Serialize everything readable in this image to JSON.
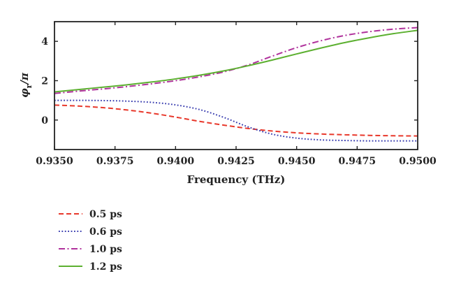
{
  "chart_data": {
    "type": "line",
    "title": "",
    "xlabel": "Frequency (THz)",
    "ylabel": "φr/π",
    "ylabel_main": "φ",
    "ylabel_sub": "r",
    "ylabel_tail": "/π",
    "xlim": [
      0.935,
      0.95
    ],
    "ylim": [
      -1.5,
      5.0
    ],
    "xticks": [
      0.935,
      0.9375,
      0.94,
      0.9425,
      0.945,
      0.9475,
      0.95
    ],
    "xtick_labels": [
      "0.9350",
      "0.9375",
      "0.9400",
      "0.9425",
      "0.9450",
      "0.9475",
      "0.9500"
    ],
    "yticks": [
      0,
      2,
      4
    ],
    "ytick_labels": [
      "0",
      "2",
      "4"
    ],
    "grid": false,
    "legend_position": "below-left",
    "x": [
      0.935,
      0.936,
      0.937,
      0.938,
      0.939,
      0.94,
      0.941,
      0.942,
      0.943,
      0.944,
      0.945,
      0.946,
      0.947,
      0.948,
      0.949,
      0.95
    ],
    "series": [
      {
        "name": "0.5 ps",
        "color": "#e8382b",
        "dash": "dashed",
        "values": [
          0.76,
          0.71,
          0.63,
          0.51,
          0.35,
          0.15,
          -0.07,
          -0.26,
          -0.43,
          -0.56,
          -0.65,
          -0.71,
          -0.75,
          -0.78,
          -0.8,
          -0.81
        ]
      },
      {
        "name": "0.6 ps",
        "color": "#3b3fb0",
        "dash": "dotted",
        "values": [
          1.0,
          1.0,
          0.99,
          0.96,
          0.9,
          0.77,
          0.53,
          0.13,
          -0.35,
          -0.72,
          -0.92,
          -1.01,
          -1.04,
          -1.06,
          -1.06,
          -1.06
        ]
      },
      {
        "name": "1.0 ps",
        "color": "#b0329c",
        "dash": "dashdot",
        "values": [
          1.35,
          1.47,
          1.58,
          1.7,
          1.84,
          2.0,
          2.2,
          2.45,
          2.8,
          3.25,
          3.68,
          4.03,
          4.3,
          4.49,
          4.62,
          4.7
        ]
      },
      {
        "name": "1.2 ps",
        "color": "#5cb030",
        "dash": "solid",
        "values": [
          1.43,
          1.55,
          1.67,
          1.79,
          1.93,
          2.09,
          2.28,
          2.5,
          2.76,
          3.05,
          3.36,
          3.66,
          3.94,
          4.18,
          4.39,
          4.56
        ]
      }
    ]
  }
}
